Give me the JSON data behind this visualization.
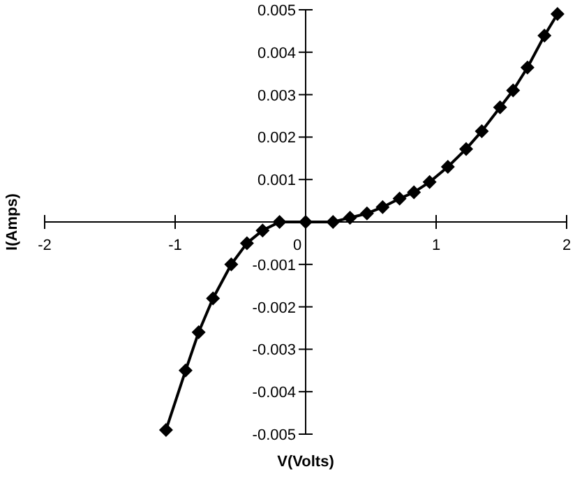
{
  "chart_data": {
    "type": "line",
    "xlabel": "V(Volts)",
    "ylabel": "I(Amps)",
    "marker": "diamond",
    "line_style": "solid",
    "xlim": [
      -2,
      2
    ],
    "xticks": [
      -2,
      -1,
      0,
      1,
      2
    ],
    "ylim": [
      -0.005,
      0.005
    ],
    "yticks": [
      -0.005,
      -0.004,
      -0.003,
      -0.002,
      -0.001,
      {
        "value": 0,
        "label": null
      },
      0.001,
      0.002,
      0.003,
      0.004,
      0.005
    ],
    "series": [
      {
        "color": "#000000",
        "x": [
          -1.07,
          -0.92,
          -0.82,
          -0.71,
          -0.57,
          -0.45,
          -0.33,
          -0.2,
          0,
          0.21,
          0.34,
          0.47,
          0.59,
          0.72,
          0.83,
          0.95,
          1.09,
          1.23,
          1.35,
          1.49,
          1.59,
          1.7,
          1.83,
          1.93
        ],
        "values": [
          -0.0049,
          -0.0035,
          -0.0026,
          -0.0018,
          -0.001,
          -0.0005,
          -0.0002,
          0,
          0,
          0,
          0.0001,
          0.0002,
          0.00035,
          0.00055,
          0.0007,
          0.00094,
          0.0013,
          0.00172,
          0.00214,
          0.0027,
          0.0031,
          0.00364,
          0.00439,
          0.0049
        ]
      }
    ]
  }
}
